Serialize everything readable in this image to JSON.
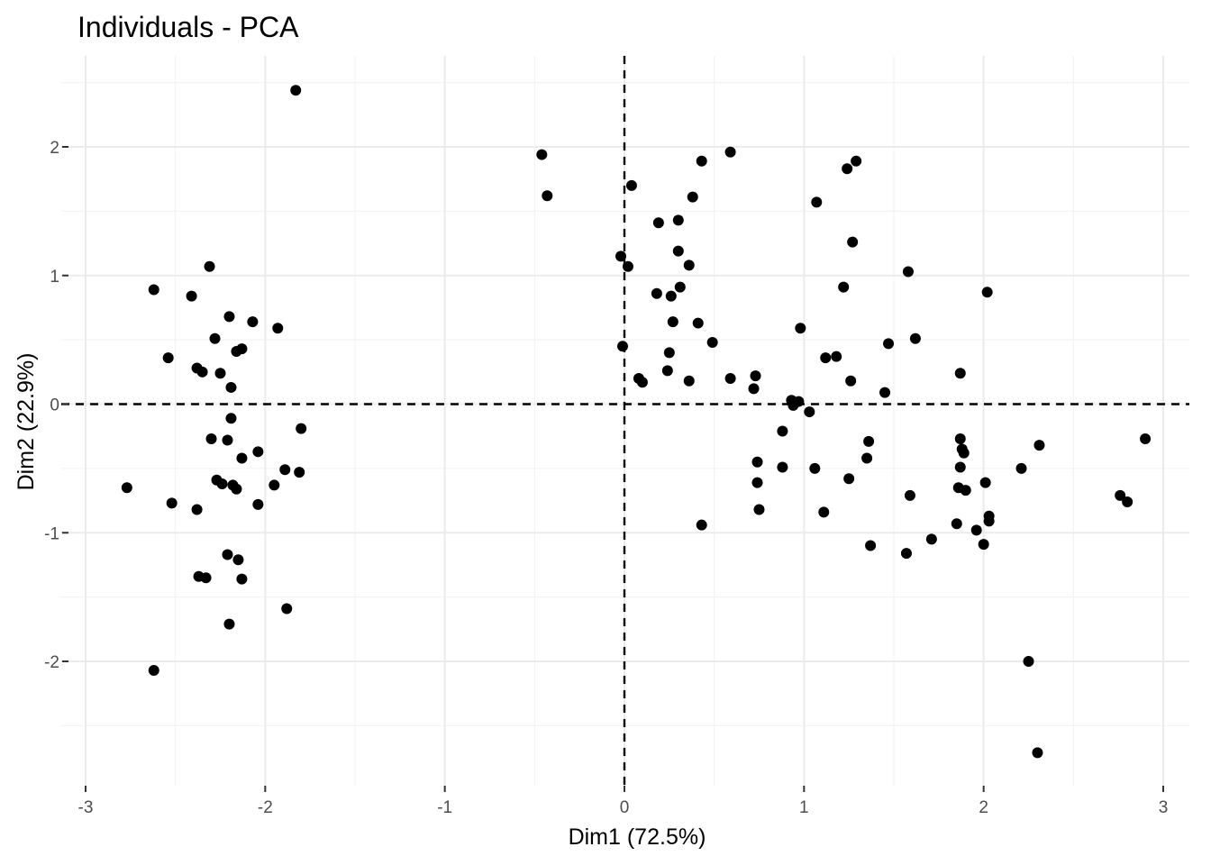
{
  "chart_data": {
    "type": "scatter",
    "title": "Individuals - PCA",
    "xlabel": "Dim1 (72.5%)",
    "ylabel": "Dim2 (22.9%)",
    "xlim": [
      -3.0,
      3.0
    ],
    "ylim": [
      -2.7,
      2.5
    ],
    "x_ticks": [
      -3,
      -2,
      -1,
      0,
      1,
      2,
      3
    ],
    "y_ticks": [
      -2,
      -1,
      0,
      1,
      2
    ],
    "x_tick_labels": [
      "-3",
      "-2",
      "-1",
      "0",
      "1",
      "2",
      "3"
    ],
    "y_tick_labels": [
      "-2",
      "-1",
      "0",
      "1",
      "2"
    ],
    "grid": true,
    "reference_lines": {
      "x": 0,
      "y": 0,
      "style": "dashed"
    },
    "point_color": "#000000",
    "points": [
      [
        -1.83,
        2.44
      ],
      [
        -2.62,
        0.89
      ],
      [
        -2.31,
        1.07
      ],
      [
        -2.41,
        0.84
      ],
      [
        -2.2,
        0.68
      ],
      [
        -2.07,
        0.64
      ],
      [
        -1.93,
        0.59
      ],
      [
        -2.28,
        0.51
      ],
      [
        -2.13,
        0.43
      ],
      [
        -2.16,
        0.41
      ],
      [
        -2.54,
        0.36
      ],
      [
        -2.38,
        0.28
      ],
      [
        -2.35,
        0.25
      ],
      [
        -2.25,
        0.24
      ],
      [
        -2.19,
        0.13
      ],
      [
        -2.19,
        -0.11
      ],
      [
        -2.3,
        -0.27
      ],
      [
        -2.21,
        -0.28
      ],
      [
        -1.8,
        -0.19
      ],
      [
        -2.04,
        -0.37
      ],
      [
        -2.13,
        -0.42
      ],
      [
        -1.89,
        -0.51
      ],
      [
        -1.81,
        -0.53
      ],
      [
        -2.27,
        -0.59
      ],
      [
        -2.24,
        -0.62
      ],
      [
        -2.18,
        -0.63
      ],
      [
        -2.16,
        -0.66
      ],
      [
        -1.95,
        -0.63
      ],
      [
        -2.77,
        -0.65
      ],
      [
        -2.52,
        -0.77
      ],
      [
        -2.04,
        -0.78
      ],
      [
        -2.38,
        -0.82
      ],
      [
        -2.21,
        -1.17
      ],
      [
        -2.15,
        -1.21
      ],
      [
        -2.37,
        -1.34
      ],
      [
        -2.33,
        -1.35
      ],
      [
        -2.13,
        -1.36
      ],
      [
        -1.88,
        -1.59
      ],
      [
        -2.2,
        -1.71
      ],
      [
        -2.62,
        -2.07
      ],
      [
        -0.46,
        1.94
      ],
      [
        -0.43,
        1.62
      ],
      [
        0.04,
        1.7
      ],
      [
        0.43,
        1.89
      ],
      [
        0.59,
        1.96
      ],
      [
        0.38,
        1.61
      ],
      [
        0.19,
        1.41
      ],
      [
        0.3,
        1.43
      ],
      [
        0.3,
        1.19
      ],
      [
        0.36,
        1.08
      ],
      [
        -0.02,
        1.15
      ],
      [
        0.02,
        1.07
      ],
      [
        0.18,
        0.86
      ],
      [
        0.26,
        0.84
      ],
      [
        0.31,
        0.91
      ],
      [
        0.27,
        0.64
      ],
      [
        0.41,
        0.63
      ],
      [
        -0.01,
        0.45
      ],
      [
        0.25,
        0.4
      ],
      [
        0.49,
        0.48
      ],
      [
        0.08,
        0.2
      ],
      [
        0.1,
        0.17
      ],
      [
        0.24,
        0.26
      ],
      [
        0.36,
        0.18
      ],
      [
        0.59,
        0.2
      ],
      [
        0.73,
        0.22
      ],
      [
        0.72,
        0.12
      ],
      [
        0.93,
        0.03
      ],
      [
        0.97,
        0.02
      ],
      [
        0.94,
        -0.01
      ],
      [
        1.03,
        -0.06
      ],
      [
        0.98,
        0.59
      ],
      [
        1.12,
        0.36
      ],
      [
        1.18,
        0.37
      ],
      [
        1.26,
        0.18
      ],
      [
        1.45,
        0.09
      ],
      [
        1.47,
        0.47
      ],
      [
        1.62,
        0.51
      ],
      [
        1.22,
        0.91
      ],
      [
        1.58,
        1.03
      ],
      [
        1.27,
        1.26
      ],
      [
        1.07,
        1.57
      ],
      [
        1.24,
        1.83
      ],
      [
        1.29,
        1.89
      ],
      [
        2.02,
        0.87
      ],
      [
        1.87,
        0.24
      ],
      [
        0.88,
        -0.21
      ],
      [
        0.74,
        -0.45
      ],
      [
        0.88,
        -0.49
      ],
      [
        0.74,
        -0.61
      ],
      [
        1.06,
        -0.5
      ],
      [
        1.25,
        -0.58
      ],
      [
        1.36,
        -0.29
      ],
      [
        1.35,
        -0.42
      ],
      [
        0.75,
        -0.82
      ],
      [
        1.11,
        -0.84
      ],
      [
        0.43,
        -0.94
      ],
      [
        1.59,
        -0.71
      ],
      [
        1.37,
        -1.1
      ],
      [
        1.57,
        -1.16
      ],
      [
        1.71,
        -1.05
      ],
      [
        1.87,
        -0.27
      ],
      [
        1.88,
        -0.35
      ],
      [
        1.89,
        -0.38
      ],
      [
        1.87,
        -0.49
      ],
      [
        1.86,
        -0.65
      ],
      [
        1.9,
        -0.67
      ],
      [
        2.01,
        -0.61
      ],
      [
        1.85,
        -0.93
      ],
      [
        1.96,
        -0.98
      ],
      [
        2.03,
        -0.87
      ],
      [
        2.03,
        -0.91
      ],
      [
        2.0,
        -1.09
      ],
      [
        2.21,
        -0.5
      ],
      [
        2.31,
        -0.32
      ],
      [
        2.76,
        -0.71
      ],
      [
        2.8,
        -0.76
      ],
      [
        2.9,
        -0.27
      ],
      [
        2.25,
        -2.0
      ],
      [
        2.3,
        -2.71
      ]
    ]
  }
}
